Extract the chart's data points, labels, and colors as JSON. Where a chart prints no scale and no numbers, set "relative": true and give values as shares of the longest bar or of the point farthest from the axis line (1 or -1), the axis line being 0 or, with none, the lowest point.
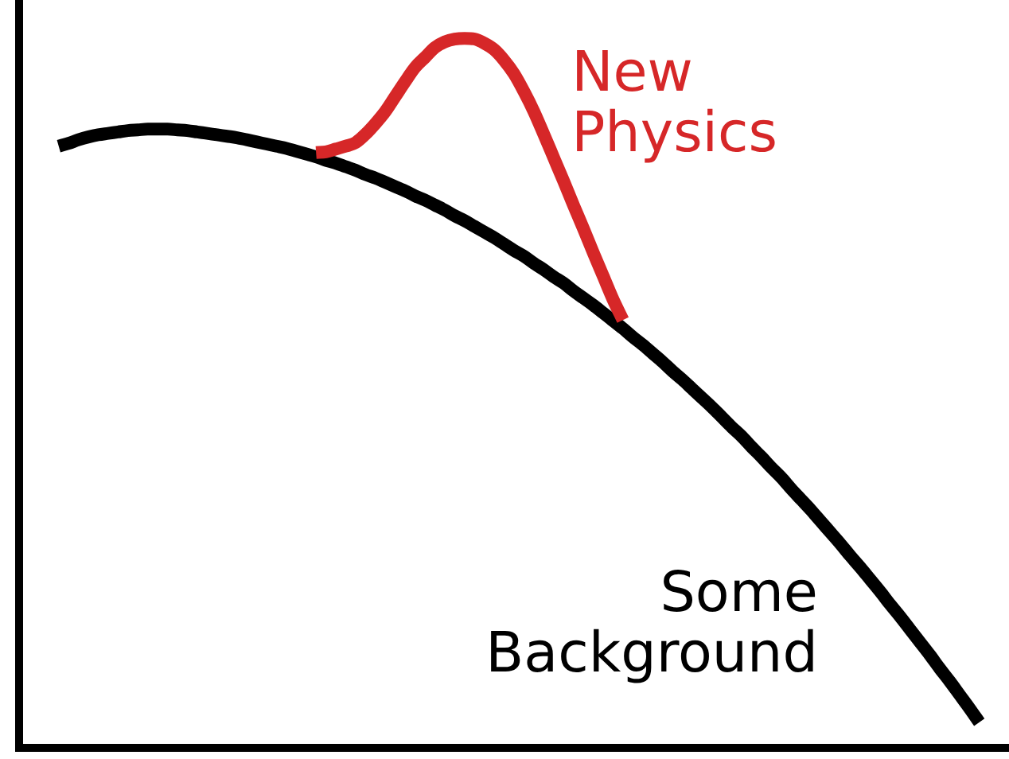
{
  "chart_data": {
    "type": "line",
    "relative": true,
    "marker": "none",
    "line_style": "solid",
    "categories": [
      null,
      null,
      null,
      null,
      null,
      null,
      null,
      null,
      null,
      null,
      null,
      null,
      null,
      null,
      null,
      null,
      null,
      null,
      null,
      null,
      null,
      null,
      null,
      null,
      null,
      null,
      null,
      null,
      null,
      null,
      null,
      null,
      null,
      null,
      null,
      null,
      null,
      null,
      null,
      null,
      null,
      null,
      null,
      null,
      null,
      null,
      null,
      null,
      null,
      null,
      null,
      null,
      null,
      null,
      null,
      null,
      null,
      null,
      null,
      null,
      null,
      null,
      null,
      null,
      null,
      null,
      null,
      null,
      null,
      null,
      null,
      null,
      null,
      null,
      null,
      null,
      null,
      null,
      null,
      null,
      null,
      null,
      null,
      null,
      null,
      null,
      null,
      null,
      null,
      null,
      null,
      null,
      null,
      null,
      null,
      null,
      null,
      null,
      null,
      null,
      null
    ],
    "series": [
      {
        "name": "Some Background",
        "color": "#000000",
        "values": [
          null,
          null,
          null,
          null,
          0.848,
          0.852,
          0.857,
          0.861,
          0.864,
          0.866,
          0.868,
          0.87,
          0.871,
          0.872,
          0.872,
          0.872,
          0.871,
          0.87,
          0.868,
          0.866,
          0.864,
          0.862,
          0.86,
          0.857,
          0.854,
          0.851,
          0.848,
          0.845,
          0.841,
          0.837,
          0.833,
          0.828,
          0.824,
          0.819,
          0.814,
          0.808,
          0.803,
          0.797,
          0.791,
          0.785,
          0.778,
          0.772,
          0.765,
          0.758,
          0.75,
          0.743,
          0.735,
          0.727,
          0.719,
          0.71,
          0.701,
          0.693,
          0.683,
          0.674,
          0.664,
          0.655,
          0.644,
          0.634,
          0.624,
          0.613,
          0.602,
          0.591,
          0.579,
          0.568,
          0.556,
          0.544,
          0.531,
          0.519,
          0.506,
          0.493,
          0.48,
          0.466,
          0.452,
          0.439,
          0.424,
          0.41,
          0.395,
          0.381,
          0.365,
          0.35,
          0.335,
          0.319,
          0.303,
          0.287,
          0.27,
          0.254,
          0.237,
          0.22,
          0.202,
          0.185,
          0.167,
          0.149,
          0.131,
          0.112,
          0.094,
          0.075,
          0.056,
          0.036,
          null,
          null,
          null
        ]
      },
      {
        "name": "New Physics",
        "color": "#d62728",
        "values": [
          null,
          null,
          null,
          null,
          null,
          null,
          null,
          null,
          null,
          null,
          null,
          null,
          null,
          null,
          null,
          null,
          null,
          null,
          null,
          null,
          null,
          null,
          null,
          null,
          null,
          null,
          null,
          null,
          null,
          null,
          0.839,
          0.84,
          0.844,
          0.848,
          0.853,
          0.865,
          0.88,
          0.897,
          0.918,
          0.939,
          0.959,
          0.973,
          0.987,
          0.995,
          0.999,
          1.0,
          0.999,
          0.993,
          0.984,
          0.969,
          0.95,
          0.925,
          0.897,
          0.865,
          0.832,
          0.799,
          0.765,
          0.732,
          0.698,
          0.665,
          0.632,
          0.603,
          null,
          null,
          null,
          null,
          null,
          null,
          null,
          null,
          null,
          null,
          null,
          null,
          null,
          null,
          null,
          null,
          null,
          null,
          null,
          null,
          null,
          null,
          null,
          null,
          null,
          null,
          null,
          null,
          null,
          null,
          null,
          null,
          null,
          null,
          null,
          null,
          null,
          null,
          null
        ]
      }
    ]
  }
}
